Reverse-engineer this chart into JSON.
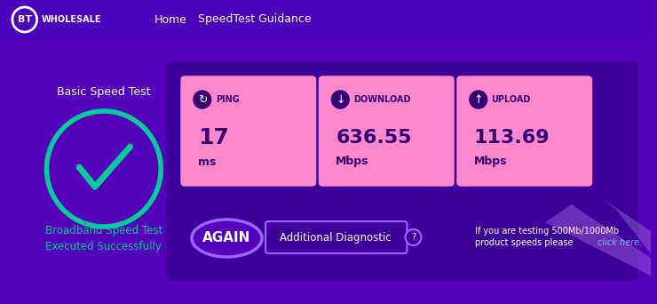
{
  "bg_color": "#5500bb",
  "nav_bg": "#4400aa",
  "card_bg": "#3a0099",
  "pink_card": "#ff80cc",
  "title_text": "Basic Speed Test",
  "subtitle_text": "Broadband Speed Test\nExecuted Successfully",
  "ping_label": "PING",
  "ping_value": "17",
  "ping_unit": "ms",
  "download_label": "DOWNLOAD",
  "download_value": "636.55",
  "download_unit": "Mbps",
  "upload_label": "UPLOAD",
  "upload_value": "113.69",
  "upload_unit": "Mbps",
  "again_text": "AGAIN",
  "diag_text": "Additional Diagnostic",
  "note_text": "If you are testing 500Mb/1000Mb\nproduct speeds please click here.",
  "menu_items": [
    "Home",
    "SpeedTest Guidance"
  ],
  "bt_text": "BT",
  "wholesale_text": "WHOLESALE",
  "teal_color": "#00cc99",
  "white": "#ffffff",
  "purple_dark": "#330088",
  "purple_medium": "#4400aa",
  "purple_nav": "#4400cc",
  "light_purple": "#9966ff"
}
